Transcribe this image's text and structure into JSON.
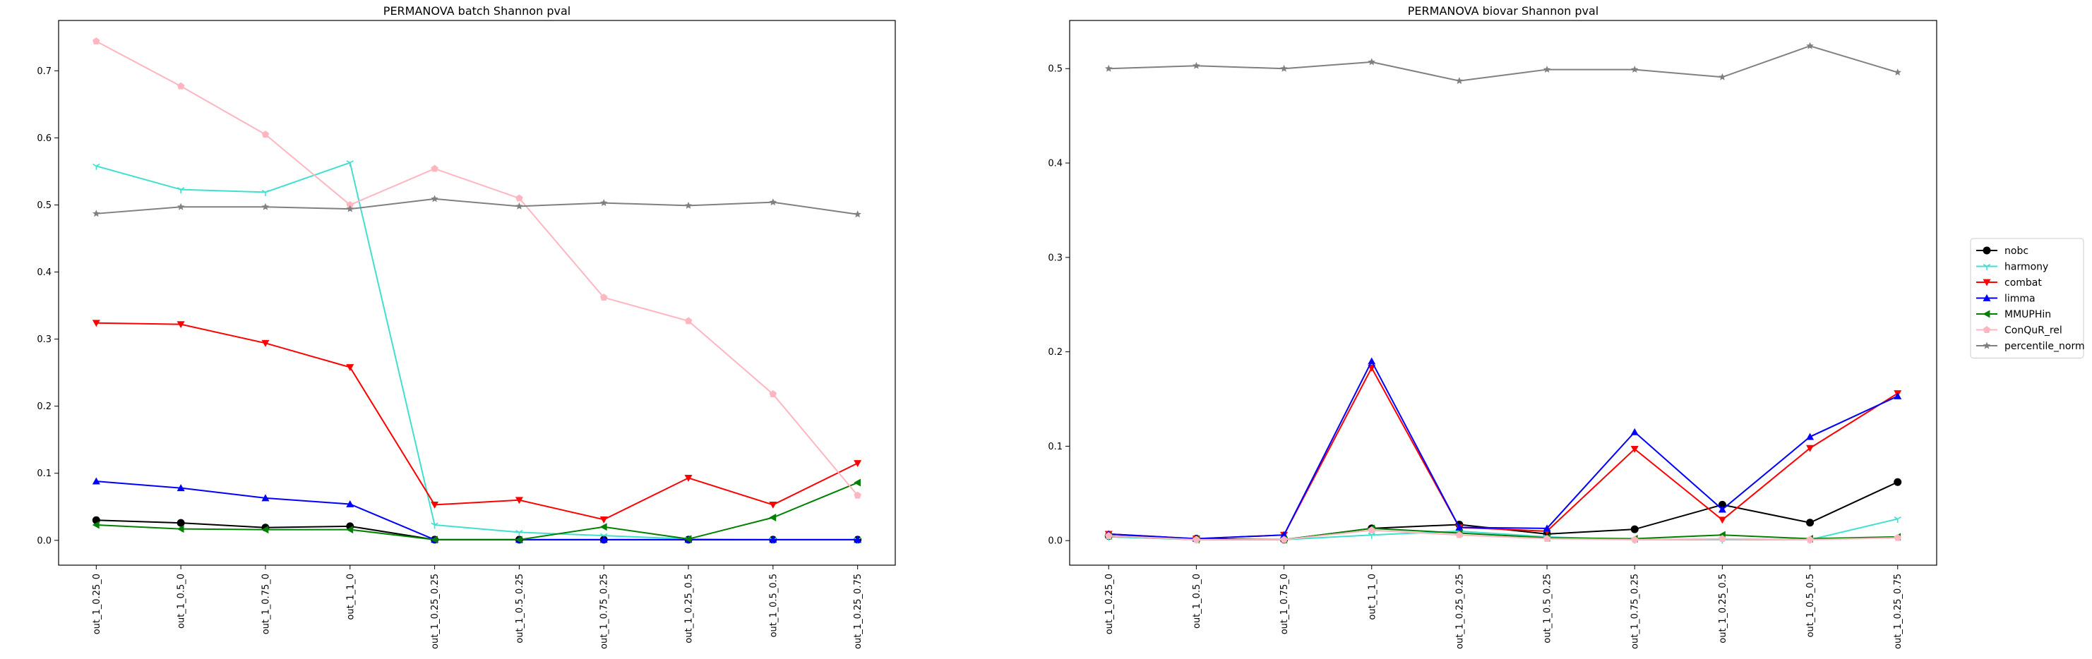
{
  "chart_data": [
    {
      "type": "line",
      "title": "PERMANOVA batch Shannon pval",
      "xlabel": "",
      "ylabel": "",
      "categories": [
        "out_1_0.25_0",
        "out_1_0.5_0",
        "out_1_0.75_0",
        "out_1_1_0",
        "out_1_0.25_0.25",
        "out_1_0.5_0.25",
        "out_1_0.75_0.25",
        "out_1_0.25_0.5",
        "out_1_0.5_0.5",
        "out_1_0.25_0.75"
      ],
      "ylim": [
        -0.037,
        0.775
      ],
      "yticks": [
        0.0,
        0.1,
        0.2,
        0.3,
        0.4,
        0.5,
        0.6,
        0.7
      ],
      "grid": false,
      "series": [
        {
          "name": "nobc",
          "color": "#000000",
          "marker": "circle",
          "values": [
            0.03,
            0.026,
            0.019,
            0.021,
            0.001,
            0.001,
            0.001,
            0.001,
            0.001,
            0.001
          ]
        },
        {
          "name": "harmony",
          "color": "#40E0D0",
          "marker": "tri_down_thin",
          "values": [
            0.558,
            0.523,
            0.519,
            0.563,
            0.023,
            0.012,
            0.007,
            0.002,
            0.001,
            0.001
          ]
        },
        {
          "name": "combat",
          "color": "#FF0000",
          "marker": "triangle_down",
          "values": [
            0.324,
            0.322,
            0.294,
            0.258,
            0.053,
            0.06,
            0.031,
            0.093,
            0.053,
            0.115
          ]
        },
        {
          "name": "limma",
          "color": "#0000FF",
          "marker": "triangle_up",
          "values": [
            0.088,
            0.078,
            0.063,
            0.054,
            0.001,
            0.001,
            0.001,
            0.001,
            0.001,
            0.001
          ]
        },
        {
          "name": "MMUPHin",
          "color": "#008000",
          "marker": "triangle_left",
          "values": [
            0.023,
            0.017,
            0.016,
            0.016,
            0.001,
            0.001,
            0.02,
            0.002,
            0.034,
            0.086
          ]
        },
        {
          "name": "ConQuR_rel",
          "color": "#FFB6C1",
          "marker": "pentagon",
          "values": [
            0.744,
            0.677,
            0.605,
            0.5,
            0.554,
            0.51,
            0.362,
            0.327,
            0.218,
            0.067
          ]
        },
        {
          "name": "percentile_norm",
          "color": "#808080",
          "marker": "star",
          "values": [
            0.487,
            0.497,
            0.497,
            0.494,
            0.509,
            0.498,
            0.503,
            0.499,
            0.504,
            0.486
          ]
        }
      ]
    },
    {
      "type": "line",
      "title": "PERMANOVA biovar Shannon pval",
      "xlabel": "",
      "ylabel": "",
      "categories": [
        "out_1_0.25_0",
        "out_1_0.5_0",
        "out_1_0.75_0",
        "out_1_1_0",
        "out_1_0.25_0.25",
        "out_1_0.5_0.25",
        "out_1_0.75_0.25",
        "out_1_0.25_0.5",
        "out_1_0.5_0.5",
        "out_1_0.25_0.75"
      ],
      "ylim": [
        -0.026,
        0.551
      ],
      "yticks": [
        0.0,
        0.1,
        0.2,
        0.3,
        0.4,
        0.5
      ],
      "grid": false,
      "series": [
        {
          "name": "nobc",
          "color": "#000000",
          "marker": "circle",
          "values": [
            0.005,
            0.002,
            0.001,
            0.013,
            0.017,
            0.007,
            0.012,
            0.038,
            0.019,
            0.062
          ]
        },
        {
          "name": "harmony",
          "color": "#40E0D0",
          "marker": "tri_down_thin",
          "values": [
            0.004,
            0.001,
            0.001,
            0.006,
            0.01,
            0.004,
            0.001,
            0.001,
            0.001,
            0.023
          ]
        },
        {
          "name": "combat",
          "color": "#FF0000",
          "marker": "triangle_down",
          "values": [
            0.007,
            0.002,
            0.006,
            0.183,
            0.014,
            0.01,
            0.097,
            0.022,
            0.098,
            0.156
          ]
        },
        {
          "name": "limma",
          "color": "#0000FF",
          "marker": "triangle_up",
          "values": [
            0.007,
            0.002,
            0.006,
            0.19,
            0.014,
            0.013,
            0.115,
            0.033,
            0.11,
            0.153
          ]
        },
        {
          "name": "MMUPHin",
          "color": "#008000",
          "marker": "triangle_left",
          "values": [
            0.005,
            0.001,
            0.001,
            0.013,
            0.008,
            0.003,
            0.002,
            0.006,
            0.002,
            0.004
          ]
        },
        {
          "name": "ConQuR_rel",
          "color": "#FFB6C1",
          "marker": "pentagon",
          "values": [
            0.005,
            0.001,
            0.001,
            0.011,
            0.006,
            0.002,
            0.001,
            0.002,
            0.001,
            0.003
          ]
        },
        {
          "name": "percentile_norm",
          "color": "#808080",
          "marker": "star",
          "values": [
            0.5,
            0.503,
            0.5,
            0.507,
            0.487,
            0.499,
            0.499,
            0.491,
            0.524,
            0.496
          ]
        }
      ]
    }
  ],
  "legend": {
    "placement": "right",
    "entries": [
      "nobc",
      "harmony",
      "combat",
      "limma",
      "MMUPHin",
      "ConQuR_rel",
      "percentile_norm"
    ]
  }
}
